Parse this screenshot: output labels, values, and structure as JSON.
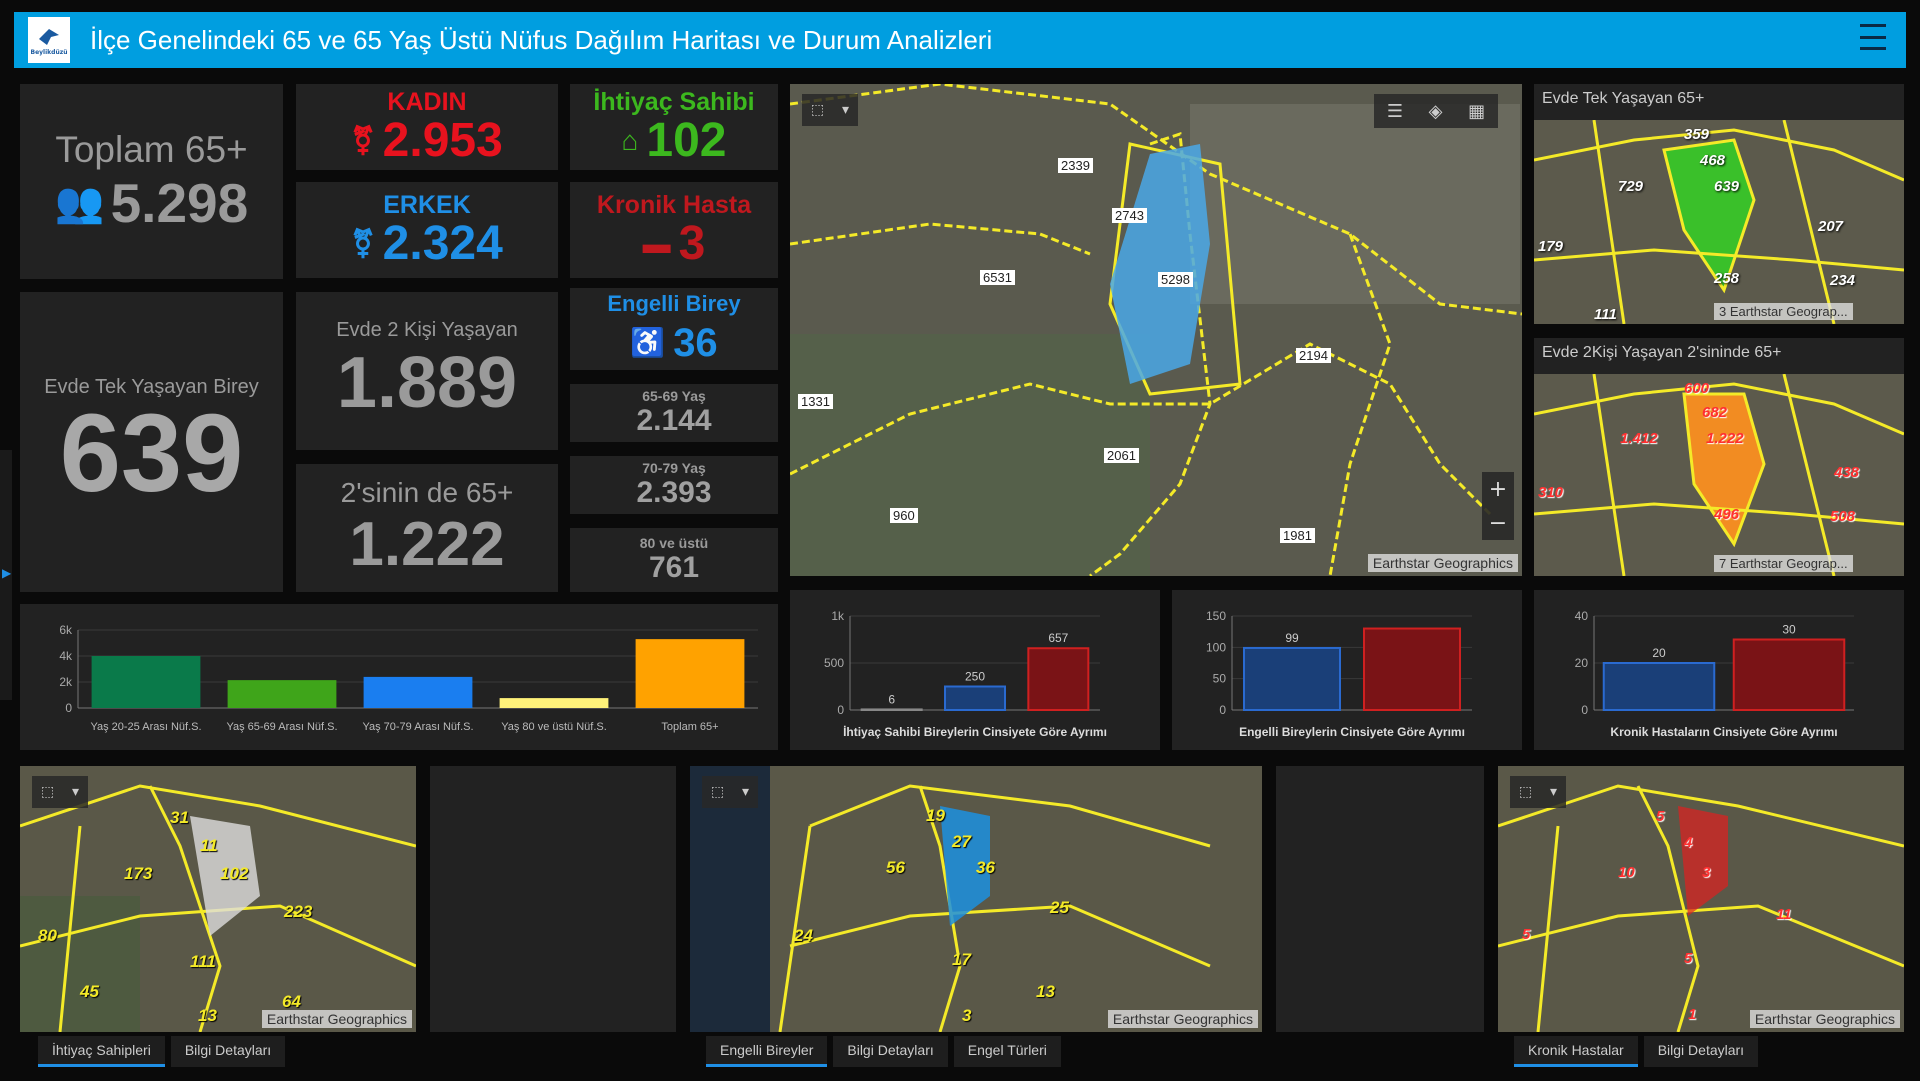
{
  "header": {
    "title": "İlçe Genelindeki 65 ve 65 Yaş Üstü Nüfus Dağılım Haritası ve Durum Analizleri",
    "logo_text": "Beylikdüzü"
  },
  "cards": {
    "total": {
      "label": "Toplam 65+",
      "value": "5.298"
    },
    "single": {
      "label": "Evde Tek Yaşayan Birey",
      "value": "639"
    },
    "kadin": {
      "label": "KADIN",
      "value": "2.953",
      "color": "#e8121e"
    },
    "erkek": {
      "label": "ERKEK",
      "value": "2.324",
      "color": "#1f8fe6"
    },
    "two": {
      "label": "Evde 2 Kişi Yaşayan",
      "value": "1.889"
    },
    "both": {
      "label": "2'sinin de 65+",
      "value": "1.222"
    },
    "ihtiyac": {
      "label": "İhtiyaç Sahibi",
      "value": "102",
      "color": "#3cb81e"
    },
    "kronik": {
      "label": "Kronik Hasta",
      "value": "3",
      "color": "#c0181e"
    },
    "engelli": {
      "label": "Engelli Birey",
      "value": "36",
      "color": "#1f8fe6"
    },
    "age1": {
      "label": "65-69 Yaş",
      "value": "2.144"
    },
    "age2": {
      "label": "70-79 Yaş",
      "value": "2.393"
    },
    "age3": {
      "label": "80 ve üstü",
      "value": "761"
    }
  },
  "main_map": {
    "labels": [
      "2339",
      "2743",
      "6531",
      "5298",
      "2194",
      "1331",
      "2061",
      "960",
      "1981"
    ],
    "attribution": "Earthstar Geographics"
  },
  "side_map1": {
    "title": "Evde Tek Yaşayan 65+",
    "labels": [
      "359",
      "468",
      "729",
      "639",
      "207",
      "179",
      "258",
      "234",
      "111",
      "3"
    ],
    "attribution": "Earthstar Geograp..."
  },
  "side_map2": {
    "title": "Evde 2Kişi Yaşayan 2'sininde 65+",
    "labels": [
      "600",
      "682",
      "1.412",
      "1.222",
      "438",
      "310",
      "496",
      "508",
      "7"
    ],
    "attribution": "Earthstar Geograp..."
  },
  "bottom_maps": [
    {
      "labels": [
        "31",
        "11",
        "173",
        "102",
        "223",
        "80",
        "111",
        "45",
        "13",
        "64"
      ],
      "attribution": "Earthstar Geographics",
      "tabs": [
        "İhtiyaç Sahipleri",
        "Bilgi Detayları"
      ]
    },
    {
      "labels": [
        "19",
        "27",
        "56",
        "36",
        "25",
        "24",
        "17",
        "13",
        "3"
      ],
      "attribution": "Earthstar Geographics",
      "tabs": [
        "Engelli Bireyler",
        "Bilgi Detayları",
        "Engel Türleri"
      ]
    },
    {
      "labels": [
        "5",
        "4",
        "10",
        "3",
        "11",
        "5",
        "5",
        "1"
      ],
      "attribution": "Earthstar Geographics",
      "tabs": [
        "Kronik Hastalar",
        "Bilgi Detayları"
      ]
    }
  ],
  "chart_data": [
    {
      "type": "bar",
      "categories": [
        "Yaş 20-25 Arası Nüf.S.",
        "Yaş 65-69 Arası Nüf.S.",
        "Yaş 70-79 Arası Nüf.S.",
        "Yaş 80 ve üstü Nüf.S.",
        "Toplam 65+"
      ],
      "values": [
        4000,
        2144,
        2393,
        761,
        5298
      ],
      "colors": [
        "#0a7a4a",
        "#3fa51a",
        "#1a7ef0",
        "#fff27a",
        "#ffa200"
      ],
      "ylim": [
        0,
        6000
      ],
      "yticks": [
        "0",
        "2k",
        "4k",
        "6k"
      ]
    },
    {
      "type": "bar",
      "title": "İhtiyaç Sahibi Bireylerin Cinsiyete Göre Ayrımı",
      "categories": [
        "",
        "",
        ""
      ],
      "values": [
        6,
        250,
        657
      ],
      "labels": [
        "6",
        "250",
        "657"
      ],
      "colors": [
        "#555",
        "#1a3f78",
        "#7a1316"
      ],
      "edges": [
        "#888",
        "#2a6ad0",
        "#d02020"
      ],
      "ylim": [
        0,
        1000
      ],
      "yticks": [
        "0",
        "500",
        "1k"
      ]
    },
    {
      "type": "bar",
      "title": "Engelli Bireylerin Cinsiyete Göre Ayrımı",
      "categories": [
        "",
        ""
      ],
      "values": [
        99,
        130
      ],
      "labels": [
        "99",
        ""
      ],
      "colors": [
        "#1a3f78",
        "#7a1316"
      ],
      "edges": [
        "#2a6ad0",
        "#d02020"
      ],
      "ylim": [
        0,
        150
      ],
      "yticks": [
        "0",
        "50",
        "100",
        "150"
      ]
    },
    {
      "type": "bar",
      "title": "Kronik Hastaların Cinsiyete Göre Ayrımı",
      "categories": [
        "",
        ""
      ],
      "values": [
        20,
        30
      ],
      "labels": [
        "20",
        "30"
      ],
      "colors": [
        "#1a3f78",
        "#7a1316"
      ],
      "edges": [
        "#2a6ad0",
        "#d02020"
      ],
      "ylim": [
        0,
        40
      ],
      "yticks": [
        "0",
        "20",
        "40"
      ]
    }
  ]
}
